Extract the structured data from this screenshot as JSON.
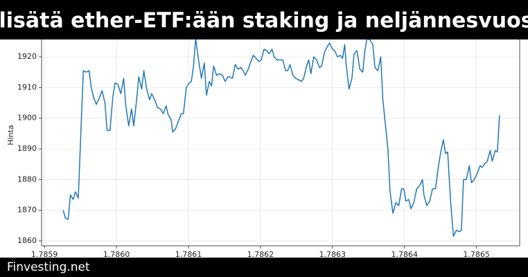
{
  "chart_data": {
    "type": "line",
    "title": "a lisätä ether-ETF:ään staking ja neljännesvuosit",
    "y_label": "Hinta",
    "color": "#1f77b4",
    "grid": true,
    "xlim": [
      1.785896,
      1.78656
    ],
    "xticks": [
      1.7859,
      {
        "value": 1.786,
        "label": "1.7860"
      },
      1.7861,
      1.7862,
      1.7863,
      1.7864,
      1.7865
    ],
    "ylim": [
      1858.4,
      1929.5
    ],
    "yticks": [
      1860,
      1870,
      1880,
      1890,
      1900,
      1910,
      1920
    ],
    "x": [
      1.785926,
      1.785929,
      1.785933,
      1.785936,
      1.78594,
      1.785943,
      1.785947,
      1.78595,
      1.785954,
      1.785958,
      1.785962,
      1.785965,
      1.785968,
      1.785972,
      1.785976,
      1.78598,
      1.785984,
      1.785987,
      1.785991,
      1.785995,
      1.785998,
      1.786002,
      1.786006,
      1.78601,
      1.786013,
      1.786017,
      1.786021,
      1.786024,
      1.786028,
      1.786031,
      1.786035,
      1.786038,
      1.786042,
      1.786046,
      1.786049,
      1.786053,
      1.786057,
      1.786061,
      1.786065,
      1.786069,
      1.786072,
      1.786076,
      1.786078,
      1.786082,
      1.786086,
      1.78609,
      1.786093,
      1.786097,
      1.786101,
      1.786104,
      1.786107,
      1.78611,
      1.786114,
      1.786118,
      1.786122,
      1.786125,
      1.786129,
      1.786132,
      1.786135,
      1.786139,
      1.786143,
      1.786147,
      1.786151,
      1.786155,
      1.786157,
      1.786161,
      1.786165,
      1.786169,
      1.786173,
      1.786176,
      1.786179,
      1.786183,
      1.786186,
      1.78619,
      1.786194,
      1.786198,
      1.786201,
      1.786205,
      1.786209,
      1.786212,
      1.786216,
      1.786219,
      1.786223,
      1.786227,
      1.786231,
      1.786235,
      1.786238,
      1.786241,
      1.786245,
      1.786249,
      1.786253,
      1.786257,
      1.78626,
      1.786264,
      1.786267,
      1.78627,
      1.786274,
      1.786278,
      1.786282,
      1.786285,
      1.786289,
      1.786292,
      1.786296,
      1.7863,
      1.786303,
      1.786307,
      1.786311,
      1.786314,
      1.786317,
      1.786319,
      1.786323,
      1.786327,
      1.78633,
      1.786334,
      1.786338,
      1.786342,
      1.786345,
      1.786348,
      1.786352,
      1.786356,
      1.786359,
      1.786363,
      1.786367,
      1.78637,
      1.786373,
      1.786377,
      1.78638,
      1.786384,
      1.786388,
      1.786392,
      1.786396,
      1.786399,
      1.786402,
      1.786406,
      1.786409,
      1.786413,
      1.786417,
      1.786421,
      1.786425,
      1.786427,
      1.786431,
      1.786435,
      1.786439,
      1.786443,
      1.786447,
      1.78645,
      1.786454,
      1.786457,
      1.78646,
      1.786464,
      1.786468,
      1.786472,
      1.786476,
      1.786479,
      1.786482,
      1.786486,
      1.78649,
      1.786493,
      1.786497,
      1.786501,
      1.786505,
      1.786508,
      1.786511,
      1.786515,
      1.786519,
      1.786522,
      1.786526,
      1.786529,
      1.786532
    ],
    "values": [
      1870,
      1867.5,
      1867,
      1875,
      1873.5,
      1876,
      1874,
      1892,
      1915.5,
      1915,
      1915.5,
      1910,
      1907,
      1904.5,
      1906.5,
      1909,
      1905,
      1896,
      1896,
      1907,
      1911.5,
      1911,
      1908,
      1913,
      1904,
      1897.5,
      1903,
      1897.5,
      1906,
      1913.5,
      1909.5,
      1915.5,
      1909.5,
      1906,
      1908,
      1906,
      1903.5,
      1903,
      1901.5,
      1904,
      1901,
      1899.5,
      1895.5,
      1896.5,
      1899,
      1901.5,
      1901.5,
      1910,
      1911.5,
      1912,
      1917,
      1926,
      1919,
      1913,
      1918,
      1907.5,
      1912,
      1910.5,
      1917,
      1914,
      1914.5,
      1914,
      1912,
      1913.5,
      1913.5,
      1913,
      1917.5,
      1916,
      1916.5,
      1915.5,
      1914,
      1916,
      1918,
      1920.5,
      1919.5,
      1918.5,
      1919,
      1922.5,
      1922,
      1921,
      1922.5,
      1920,
      1919,
      1919,
      1919,
      1915.5,
      1915.5,
      1917.5,
      1914,
      1913,
      1912.5,
      1912,
      1913,
      1917,
      1919,
      1914.5,
      1920,
      1919,
      1916.5,
      1917,
      1921.5,
      1923,
      1924.5,
      1922.5,
      1922,
      1920,
      1920.5,
      1919.5,
      1924,
      1917.5,
      1909.5,
      1913,
      1921,
      1922,
      1916,
      1915,
      1922,
      1926,
      1925.5,
      1924,
      1916.5,
      1915.5,
      1920,
      1906,
      1899,
      1890,
      1876,
      1869,
      1872.5,
      1871.5,
      1877,
      1877,
      1873,
      1873.5,
      1870.5,
      1872.5,
      1877,
      1878,
      1880,
      1875,
      1871.5,
      1873,
      1877,
      1877,
      1884,
      1888.5,
      1893,
      1888.5,
      1889,
      1873,
      1861.5,
      1863.5,
      1863,
      1863.5,
      1880,
      1880,
      1884.5,
      1879,
      1880,
      1882,
      1884.5,
      1884,
      1885,
      1886,
      1889.5,
      1886,
      1889.5,
      1889,
      1901
    ]
  },
  "watermark": "Finvesting.net"
}
